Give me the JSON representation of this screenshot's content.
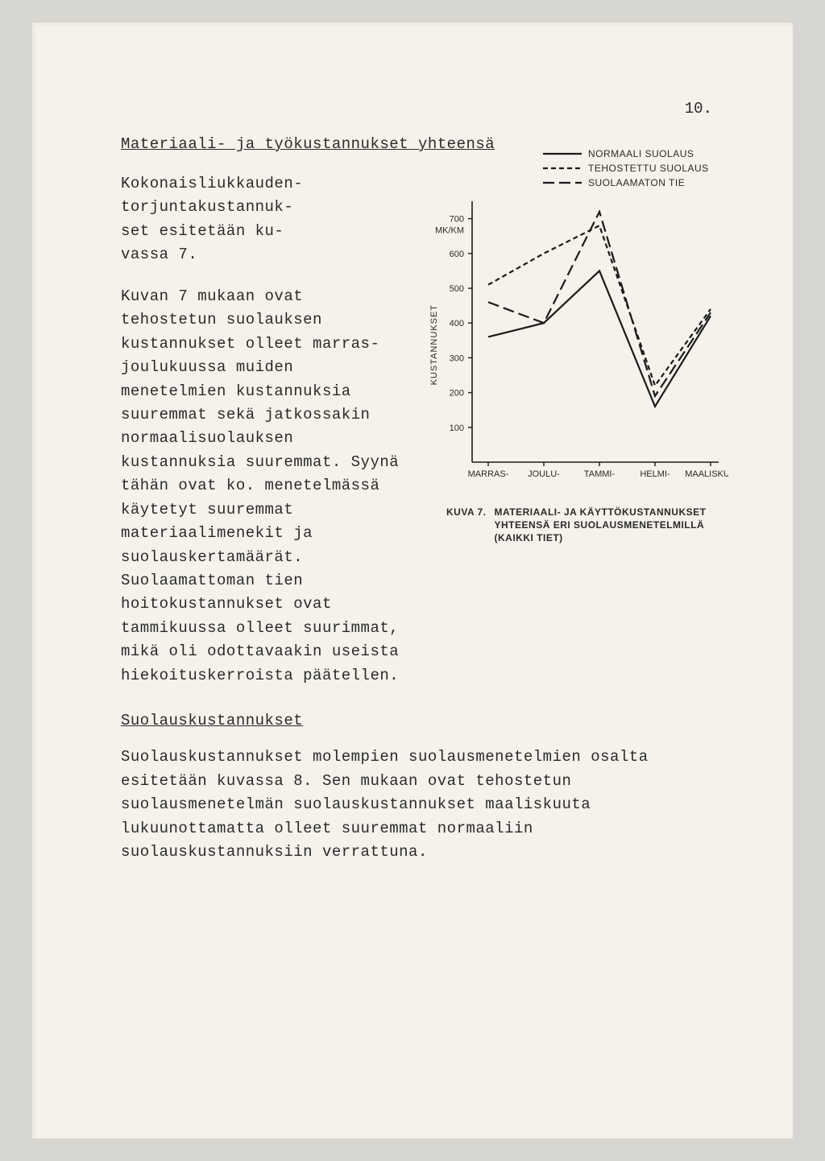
{
  "page_number": "10.",
  "heading": "Materiaali- ja työkustannukset yhteensä",
  "intro_paragraph": "Kokonaisliukkauden-\ntorjuntakustannuk-\nset esitetään ku-\nvassa 7.",
  "main_paragraph": "Kuvan 7 mukaan ovat tehostetun suolauksen kustannukset olleet marras- joulukuussa muiden menetelmien kustannuksia suuremmat sekä jatkossakin normaalisuolauksen kustannuksia suuremmat. Syynä tähän ovat ko. menetelmässä käytetyt suuremmat materiaalimenekit ja suolauskertamäärät. Suolaamattoman tien hoitokustannukset ovat tammikuussa olleet suurimmat, mikä oli odottavaakin useista hiekoituskerroista päätellen.",
  "sub_heading": "Suolauskustannukset",
  "body_paragraph": "Suolauskustannukset molempien suolausmenetelmien osalta esitetään kuvassa 8. Sen mukaan ovat tehostetun suolausmenetelmän suolauskustannukset maaliskuuta lukuunottamatta olleet suuremmat normaaliin suolauskustannuksiin verrattuna.",
  "chart": {
    "type": "line",
    "ylabel_rotated": "KUSTANNUKSET",
    "y_unit": "MK/KM",
    "ylim": [
      0,
      750
    ],
    "yticks": [
      100,
      200,
      300,
      400,
      500,
      600,
      700
    ],
    "x_categories": [
      "MARRAS-",
      "JOULU-",
      "TAMMI-",
      "HELMI-",
      "MAALISKUU"
    ],
    "legend": [
      {
        "label": "NORMAALI SUOLAUS",
        "style": "solid",
        "color": "#1a1a1a"
      },
      {
        "label": "TEHOSTETTU SUOLAUS",
        "style": "dashed",
        "color": "#1a1a1a"
      },
      {
        "label": "SUOLAAMATON TIE",
        "style": "longdash",
        "color": "#1a1a1a"
      }
    ],
    "series": {
      "normaali": [
        360,
        400,
        550,
        160,
        420
      ],
      "tehostettu": [
        510,
        600,
        680,
        220,
        440
      ],
      "suolaamaton": [
        460,
        400,
        720,
        190,
        430
      ]
    },
    "line_width": 2.2,
    "background_color": "#f4f2ea",
    "axis_color": "#1a1a1a",
    "caption_id": "KUVA 7.",
    "caption_text": "MATERIAALI- JA KÄYTTÖKUSTANNUKSET YHTEENSÄ ERI SUOLAUSMENETELMILLÄ (KAIKKI TIET)",
    "x_axis_label_fontsize": 11,
    "caption_fontsize": 12
  }
}
